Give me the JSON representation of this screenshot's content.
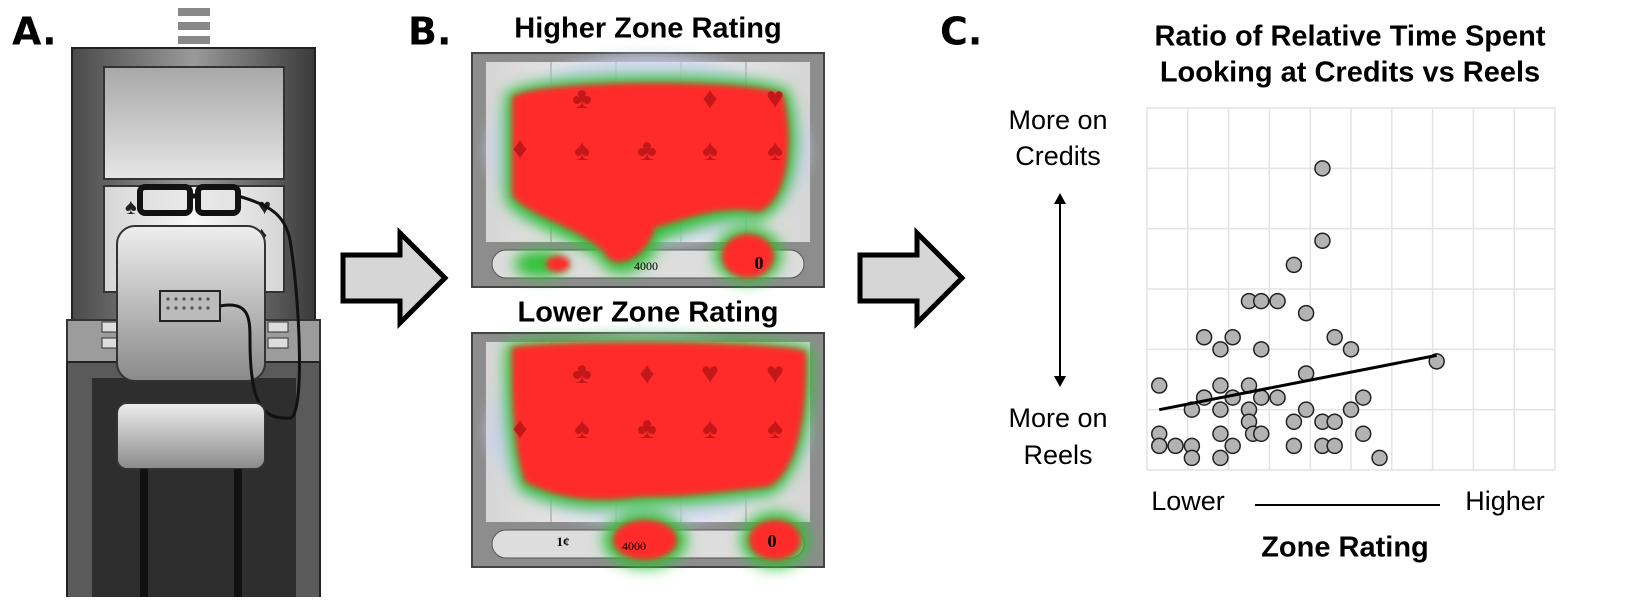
{
  "panels": {
    "a": {
      "label": "A."
    },
    "b": {
      "label": "B.",
      "higher": {
        "title": "Higher Zone Rating",
        "credits": "4000",
        "bet": "0"
      },
      "lower": {
        "title": "Lower Zone Rating",
        "credits": "4000",
        "bet": "0",
        "denomination": "1¢"
      }
    },
    "c": {
      "label": "C."
    }
  },
  "chart_data": {
    "type": "scatter",
    "title": [
      "Ratio of Relative Time Spent",
      "Looking at Credits vs Reels"
    ],
    "x_label": "Zone Rating",
    "x_low_label": "Lower",
    "x_high_label": "Higher",
    "y_high_label": [
      "More on",
      "Credits"
    ],
    "y_low_label": [
      "More on",
      "Reels"
    ],
    "x": [
      4.3,
      4.3,
      3.6,
      2.5,
      2.8,
      3.2,
      3.9,
      1.4,
      2.1,
      1.8,
      2.8,
      4.6,
      5.0,
      7.1,
      0.3,
      1.8,
      2.5,
      3.9,
      1.4,
      2.1,
      2.8,
      1.1,
      1.8,
      2.5,
      3.2,
      3.9,
      5.0,
      5.3,
      2.5,
      3.6,
      4.3,
      4.6,
      0.3,
      1.8,
      2.6,
      2.8,
      0.3,
      0.7,
      1.1,
      2.1,
      3.6,
      4.3,
      4.6,
      5.3,
      1.1,
      1.8,
      5.7
    ],
    "y": [
      5.0,
      3.8,
      3.4,
      2.8,
      2.8,
      2.8,
      2.6,
      2.2,
      2.2,
      2.0,
      2.0,
      2.2,
      2.0,
      1.8,
      1.4,
      1.4,
      1.4,
      1.6,
      1.2,
      1.2,
      1.2,
      1.0,
      1.0,
      1.0,
      1.2,
      1.0,
      1.0,
      1.2,
      0.8,
      0.8,
      0.8,
      0.8,
      0.6,
      0.6,
      0.6,
      0.6,
      0.4,
      0.4,
      0.4,
      0.4,
      0.4,
      0.4,
      0.4,
      0.6,
      0.2,
      0.2,
      0.2
    ],
    "color": "#b3b3b3",
    "trend": {
      "x": [
        0.3,
        7.1
      ],
      "y": [
        1.0,
        1.9
      ]
    },
    "xlim": [
      0,
      10
    ],
    "ylim": [
      0,
      6
    ],
    "xticks": [
      0,
      1,
      2,
      3,
      4,
      5,
      6,
      7,
      8,
      9,
      10
    ],
    "yticks": [
      0,
      1,
      2,
      3,
      4,
      5,
      6
    ],
    "grid": true
  }
}
